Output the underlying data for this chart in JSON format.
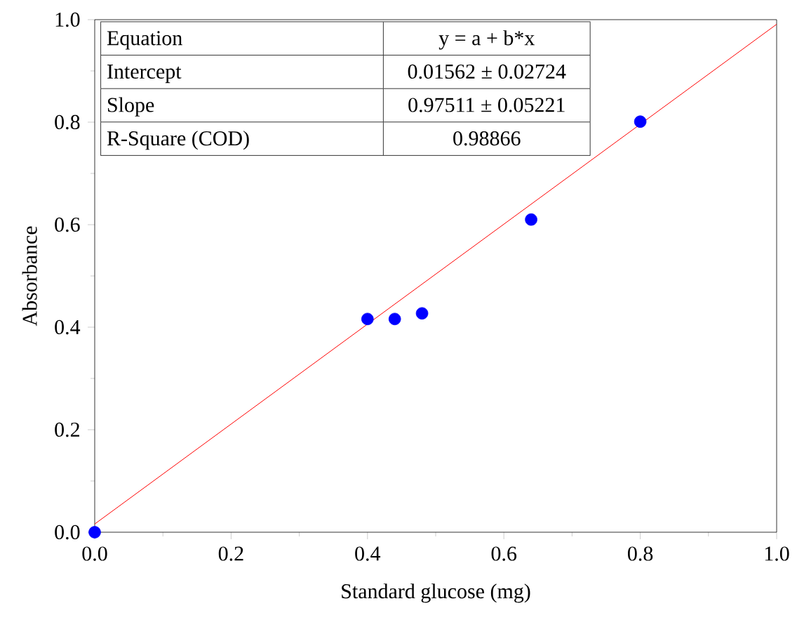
{
  "chart_data": {
    "type": "scatter",
    "xlabel": "Standard glucose (mg)",
    "ylabel": "Absorbance",
    "xlim": [
      0,
      1
    ],
    "ylim": [
      0,
      1
    ],
    "xticks": [
      {
        "value": 0,
        "label": "0.0"
      },
      {
        "value": 0.2,
        "label": "0.2"
      },
      {
        "value": 0.4,
        "label": "0.4"
      },
      {
        "value": 0.6,
        "label": "0.6"
      },
      {
        "value": 0.8,
        "label": "0.8"
      },
      {
        "value": 1,
        "label": "1.0"
      }
    ],
    "yticks": [
      {
        "value": 0,
        "label": "0.0"
      },
      {
        "value": 0.2,
        "label": "0.2"
      },
      {
        "value": 0.4,
        "label": "0.4"
      },
      {
        "value": 0.6,
        "label": "0.6"
      },
      {
        "value": 0.8,
        "label": "0.8"
      },
      {
        "value": 1,
        "label": "1.0"
      }
    ],
    "series": [
      {
        "type": "scatter",
        "color": "#0000ff",
        "marker": "circle",
        "x": [
          0,
          0.4,
          0.44,
          0.48,
          0.64,
          0.8
        ],
        "values": [
          0,
          0.416,
          0.416,
          0.427,
          0.61,
          0.801
        ]
      },
      {
        "type": "line",
        "color": "#ff0000",
        "marker": "none",
        "line_style": "solid",
        "x": [
          0,
          1
        ],
        "values": [
          0.016,
          0.991
        ]
      }
    ],
    "annotations": [
      "Equation",
      "y = a + b*x",
      "Intercept",
      "0.01562 ± 0.02724",
      "Slope",
      "0.97511 ± 0.05221",
      "R-Square (COD)",
      "0.98866"
    ]
  }
}
